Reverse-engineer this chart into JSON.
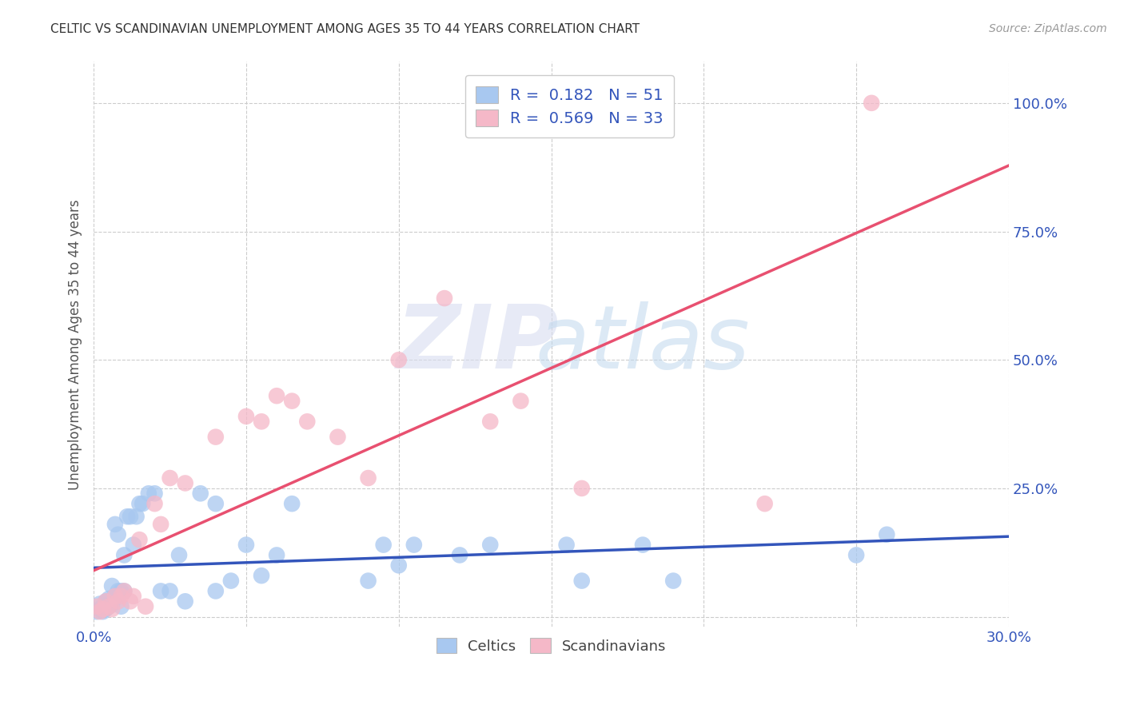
{
  "title": "CELTIC VS SCANDINAVIAN UNEMPLOYMENT AMONG AGES 35 TO 44 YEARS CORRELATION CHART",
  "source": "Source: ZipAtlas.com",
  "ylabel": "Unemployment Among Ages 35 to 44 years",
  "xlim": [
    0.0,
    0.3
  ],
  "ylim": [
    -0.02,
    1.08
  ],
  "x_ticks": [
    0.0,
    0.05,
    0.1,
    0.15,
    0.2,
    0.25,
    0.3
  ],
  "y_ticks": [
    0.0,
    0.25,
    0.5,
    0.75,
    1.0
  ],
  "celtics_color": "#a8c8f0",
  "scandinavians_color": "#f5b8c8",
  "celtics_line_color": "#3355bb",
  "scandinavians_line_color": "#e85070",
  "celtics_R": 0.182,
  "celtics_N": 51,
  "scandinavians_R": 0.569,
  "scandinavians_N": 33,
  "background_color": "#ffffff",
  "grid_color": "#cccccc",
  "celtics_x": [
    0.001,
    0.002,
    0.002,
    0.003,
    0.003,
    0.004,
    0.004,
    0.005,
    0.005,
    0.006,
    0.006,
    0.007,
    0.007,
    0.008,
    0.008,
    0.009,
    0.009,
    0.01,
    0.01,
    0.011,
    0.012,
    0.013,
    0.014,
    0.015,
    0.016,
    0.018,
    0.02,
    0.022,
    0.025,
    0.028,
    0.03,
    0.035,
    0.04,
    0.04,
    0.045,
    0.05,
    0.055,
    0.06,
    0.065,
    0.09,
    0.095,
    0.1,
    0.105,
    0.12,
    0.13,
    0.155,
    0.16,
    0.18,
    0.19,
    0.25,
    0.26
  ],
  "celtics_y": [
    0.01,
    0.015,
    0.025,
    0.01,
    0.02,
    0.015,
    0.03,
    0.02,
    0.035,
    0.025,
    0.06,
    0.04,
    0.18,
    0.05,
    0.16,
    0.02,
    0.05,
    0.05,
    0.12,
    0.195,
    0.195,
    0.14,
    0.195,
    0.22,
    0.22,
    0.24,
    0.24,
    0.05,
    0.05,
    0.12,
    0.03,
    0.24,
    0.05,
    0.22,
    0.07,
    0.14,
    0.08,
    0.12,
    0.22,
    0.07,
    0.14,
    0.1,
    0.14,
    0.12,
    0.14,
    0.14,
    0.07,
    0.14,
    0.07,
    0.12,
    0.16
  ],
  "scandinavians_x": [
    0.001,
    0.002,
    0.003,
    0.004,
    0.005,
    0.006,
    0.007,
    0.008,
    0.009,
    0.01,
    0.012,
    0.013,
    0.015,
    0.017,
    0.02,
    0.022,
    0.025,
    0.03,
    0.04,
    0.05,
    0.055,
    0.06,
    0.065,
    0.07,
    0.08,
    0.09,
    0.1,
    0.115,
    0.13,
    0.14,
    0.16,
    0.22,
    0.255
  ],
  "scandinavians_y": [
    0.02,
    0.01,
    0.015,
    0.03,
    0.02,
    0.015,
    0.04,
    0.03,
    0.04,
    0.05,
    0.03,
    0.04,
    0.15,
    0.02,
    0.22,
    0.18,
    0.27,
    0.26,
    0.35,
    0.39,
    0.38,
    0.43,
    0.42,
    0.38,
    0.35,
    0.27,
    0.5,
    0.62,
    0.38,
    0.42,
    0.25,
    0.22,
    1.0
  ]
}
